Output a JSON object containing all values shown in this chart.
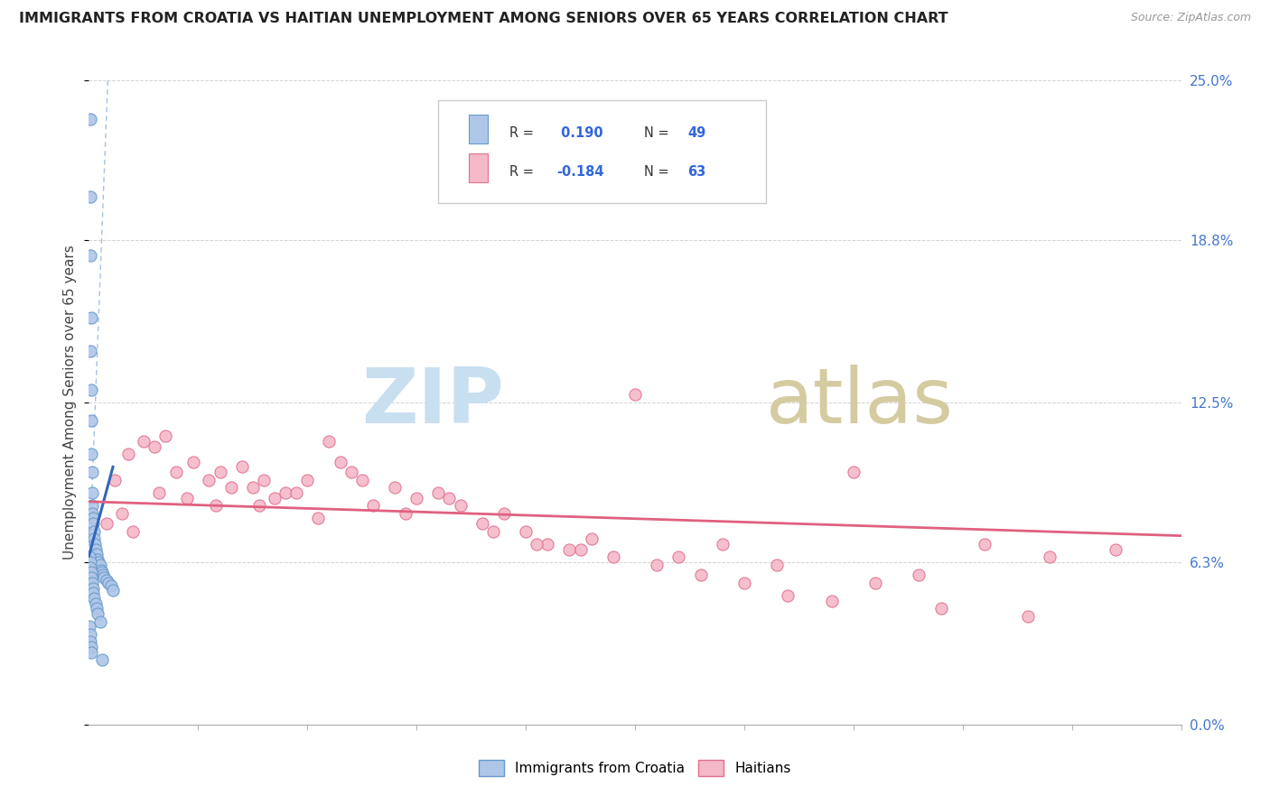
{
  "title": "IMMIGRANTS FROM CROATIA VS HAITIAN UNEMPLOYMENT AMONG SENIORS OVER 65 YEARS CORRELATION CHART",
  "source": "Source: ZipAtlas.com",
  "ylabel": "Unemployment Among Seniors over 65 years",
  "ytick_vals": [
    0.0,
    6.3,
    12.5,
    18.8,
    25.0
  ],
  "ytick_labels": [
    "0.0%",
    "6.3%",
    "12.5%",
    "18.8%",
    "25.0%"
  ],
  "xlim": [
    0.0,
    50.0
  ],
  "ylim": [
    0.0,
    25.0
  ],
  "legend_label1": "Immigrants from Croatia",
  "legend_label2": "Haitians",
  "r1": "0.190",
  "n1": "49",
  "r2": "-0.184",
  "n2": "63",
  "color_blue_fill": "#aec6e8",
  "color_blue_edge": "#6699cc",
  "color_pink_fill": "#f5b8c8",
  "color_pink_edge": "#e07090",
  "color_blue_trend": "#3366bb",
  "color_pink_trend": "#e06080",
  "color_blue_dash": "#88aadd",
  "watermark_zip_color": "#c8dff0",
  "watermark_atlas_color": "#d4cba0",
  "croatia_x": [
    0.05,
    0.08,
    0.06,
    0.09,
    0.07,
    0.1,
    0.12,
    0.11,
    0.13,
    0.15,
    0.14,
    0.16,
    0.18,
    0.2,
    0.22,
    0.25,
    0.28,
    0.3,
    0.35,
    0.4,
    0.45,
    0.5,
    0.55,
    0.6,
    0.65,
    0.7,
    0.8,
    0.9,
    1.0,
    1.1,
    0.04,
    0.06,
    0.08,
    0.1,
    0.12,
    0.15,
    0.18,
    0.2,
    0.25,
    0.3,
    0.35,
    0.4,
    0.5,
    0.03,
    0.05,
    0.07,
    0.09,
    0.11,
    0.6
  ],
  "croatia_y": [
    23.5,
    20.5,
    18.2,
    15.8,
    14.5,
    13.0,
    11.8,
    10.5,
    9.8,
    9.0,
    8.5,
    8.2,
    8.0,
    7.8,
    7.5,
    7.2,
    7.0,
    6.8,
    6.6,
    6.4,
    6.3,
    6.2,
    6.0,
    5.9,
    5.8,
    5.7,
    5.6,
    5.5,
    5.4,
    5.2,
    6.5,
    6.3,
    6.1,
    5.9,
    5.7,
    5.5,
    5.3,
    5.1,
    4.9,
    4.7,
    4.5,
    4.3,
    4.0,
    3.8,
    3.5,
    3.2,
    3.0,
    2.8,
    2.5
  ],
  "haitian_x": [
    0.8,
    1.2,
    1.8,
    2.5,
    3.0,
    3.5,
    4.0,
    4.8,
    5.5,
    6.0,
    7.0,
    7.5,
    8.0,
    8.5,
    9.0,
    10.0,
    11.0,
    11.5,
    12.0,
    13.0,
    14.0,
    15.0,
    16.0,
    17.0,
    18.0,
    19.0,
    20.0,
    21.0,
    22.0,
    23.0,
    25.0,
    27.0,
    29.0,
    31.5,
    35.0,
    38.0,
    41.0,
    44.0,
    47.0,
    1.5,
    2.0,
    3.2,
    4.5,
    5.8,
    6.5,
    7.8,
    9.5,
    10.5,
    12.5,
    14.5,
    16.5,
    18.5,
    20.5,
    22.5,
    24.0,
    26.0,
    28.0,
    30.0,
    32.0,
    34.0,
    36.0,
    39.0,
    43.0
  ],
  "haitian_y": [
    7.8,
    9.5,
    10.5,
    11.0,
    10.8,
    11.2,
    9.8,
    10.2,
    9.5,
    9.8,
    10.0,
    9.2,
    9.5,
    8.8,
    9.0,
    9.5,
    11.0,
    10.2,
    9.8,
    8.5,
    9.2,
    8.8,
    9.0,
    8.5,
    7.8,
    8.2,
    7.5,
    7.0,
    6.8,
    7.2,
    12.8,
    6.5,
    7.0,
    6.2,
    9.8,
    5.8,
    7.0,
    6.5,
    6.8,
    8.2,
    7.5,
    9.0,
    8.8,
    8.5,
    9.2,
    8.5,
    9.0,
    8.0,
    9.5,
    8.2,
    8.8,
    7.5,
    7.0,
    6.8,
    6.5,
    6.2,
    5.8,
    5.5,
    5.0,
    4.8,
    5.5,
    4.5,
    4.2
  ]
}
